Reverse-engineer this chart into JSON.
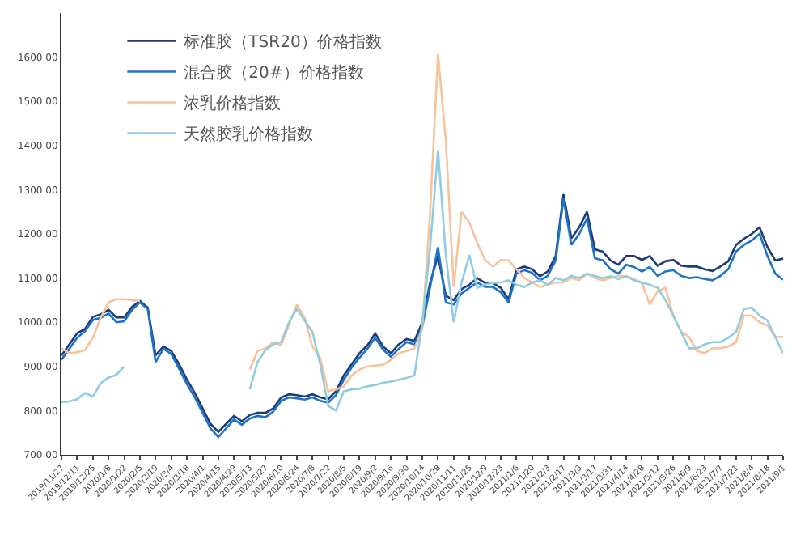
{
  "chart_data": {
    "type": "line",
    "x": [
      "2019-11-27",
      "2019-12-04",
      "2019-12-11",
      "2019-12-18",
      "2019-12-25",
      "2020-01-01",
      "2020-01-08",
      "2020-01-15",
      "2020-01-22",
      "2020-01-29",
      "2020-02-05",
      "2020-02-12",
      "2020-02-19",
      "2020-02-26",
      "2020-03-04",
      "2020-03-11",
      "2020-03-18",
      "2020-03-25",
      "2020-04-01",
      "2020-04-08",
      "2020-04-15",
      "2020-04-22",
      "2020-04-29",
      "2020-05-06",
      "2020-05-13",
      "2020-05-20",
      "2020-05-27",
      "2020-06-03",
      "2020-06-10",
      "2020-06-17",
      "2020-06-24",
      "2020-07-01",
      "2020-07-08",
      "2020-07-15",
      "2020-07-22",
      "2020-07-29",
      "2020-08-05",
      "2020-08-12",
      "2020-08-19",
      "2020-08-26",
      "2020-09-02",
      "2020-09-09",
      "2020-09-16",
      "2020-09-23",
      "2020-09-30",
      "2020-10-07",
      "2020-10-14",
      "2020-10-21",
      "2020-10-28",
      "2020-11-04",
      "2020-11-11",
      "2020-11-18",
      "2020-11-25",
      "2020-12-02",
      "2020-12-09",
      "2020-12-16",
      "2020-12-23",
      "2020-12-30",
      "2021-01-06",
      "2021-01-13",
      "2021-01-20",
      "2021-01-27",
      "2021-02-03",
      "2021-02-10",
      "2021-02-17",
      "2021-02-24",
      "2021-03-03",
      "2021-03-10",
      "2021-03-17",
      "2021-03-24",
      "2021-03-31",
      "2021-04-07",
      "2021-04-14",
      "2021-04-21",
      "2021-04-28",
      "2021-05-05",
      "2021-05-12",
      "2021-05-19",
      "2021-05-26",
      "2021-06-02",
      "2021-06-09",
      "2021-06-16",
      "2021-06-23",
      "2021-06-30",
      "2021-07-07",
      "2021-07-14",
      "2021-07-21",
      "2021-07-28",
      "2021-08-04",
      "2021-08-11",
      "2021-08-18",
      "2021-08-25",
      "2021-09-01"
    ],
    "series": [
      {
        "name": "标准胶（TSR20）价格指数",
        "color": "#1f3a75",
        "values": [
          925,
          950,
          975,
          985,
          1012,
          1018,
          1028,
          1011,
          1011,
          1035,
          1048,
          1033,
          925,
          945,
          935,
          905,
          870,
          840,
          805,
          770,
          752,
          770,
          788,
          776,
          790,
          795,
          795,
          805,
          830,
          837,
          835,
          832,
          837,
          830,
          826,
          844,
          880,
          905,
          930,
          948,
          975,
          945,
          930,
          950,
          962,
          958,
          1000,
          1090,
          1150,
          1060,
          1050,
          1075,
          1085,
          1100,
          1089,
          1089,
          1078,
          1052,
          1120,
          1126,
          1120,
          1104,
          1115,
          1150,
          1290,
          1190,
          1215,
          1250,
          1165,
          1160,
          1140,
          1130,
          1150,
          1150,
          1141,
          1150,
          1128,
          1138,
          1141,
          1128,
          1126,
          1126,
          1120,
          1116,
          1126,
          1138,
          1175,
          1189,
          1200,
          1215,
          1170,
          1140,
          1144
        ]
      },
      {
        "name": "混合胶（20#）价格指数",
        "color": "#1a73c9",
        "values": [
          915,
          940,
          965,
          980,
          1005,
          1010,
          1020,
          1000,
          1002,
          1028,
          1045,
          1030,
          910,
          940,
          928,
          895,
          860,
          830,
          795,
          760,
          740,
          760,
          780,
          768,
          782,
          788,
          785,
          798,
          822,
          830,
          828,
          825,
          830,
          822,
          818,
          835,
          870,
          898,
          920,
          940,
          965,
          938,
          922,
          940,
          955,
          950,
          990,
          1080,
          1170,
          1045,
          1040,
          1065,
          1078,
          1090,
          1080,
          1080,
          1068,
          1045,
          1110,
          1118,
          1112,
          1095,
          1105,
          1140,
          1280,
          1175,
          1200,
          1235,
          1145,
          1140,
          1120,
          1110,
          1130,
          1125,
          1115,
          1125,
          1105,
          1115,
          1118,
          1105,
          1100,
          1102,
          1098,
          1095,
          1105,
          1120,
          1160,
          1175,
          1185,
          1200,
          1150,
          1110,
          1096
        ]
      },
      {
        "name": "浓乳价格指数",
        "color": "#f8c29a",
        "values": [
          941,
          930,
          932,
          937,
          965,
          1010,
          1045,
          1052,
          1052,
          1050,
          1048,
          null,
          null,
          null,
          null,
          null,
          null,
          null,
          null,
          null,
          null,
          null,
          null,
          null,
          893,
          935,
          941,
          955,
          948,
          995,
          1040,
          1011,
          945,
          919,
          844,
          848,
          855,
          880,
          893,
          900,
          902,
          904,
          915,
          930,
          935,
          941,
          985,
          1250,
          1607,
          1411,
          1080,
          1250,
          1226,
          1180,
          1141,
          1126,
          1141,
          1140,
          1120,
          1100,
          1090,
          1080,
          1085,
          1090,
          1090,
          1100,
          1095,
          1110,
          1100,
          1095,
          1100,
          1105,
          1104,
          1098,
          1089,
          1040,
          1070,
          1078,
          1015,
          978,
          967,
          935,
          930,
          941,
          941,
          945,
          955,
          1015,
          1015,
          1000,
          993,
          967,
          967
        ]
      },
      {
        "name": "天然胶乳价格指数",
        "color": "#90cce0",
        "values": [
          819,
          821,
          826,
          840,
          832,
          862,
          875,
          881,
          900,
          null,
          null,
          null,
          null,
          null,
          null,
          null,
          null,
          null,
          null,
          null,
          null,
          null,
          null,
          null,
          848,
          910,
          937,
          950,
          955,
          1000,
          1030,
          1004,
          978,
          904,
          811,
          800,
          844,
          848,
          850,
          855,
          858,
          863,
          866,
          870,
          874,
          880,
          1000,
          1170,
          1390,
          1152,
          1000,
          1089,
          1152,
          1078,
          1085,
          1089,
          1090,
          1095,
          1085,
          1080,
          1090,
          1095,
          1085,
          1100,
          1095,
          1105,
          1100,
          1110,
          1105,
          1100,
          1104,
          1098,
          1104,
          1095,
          1089,
          1085,
          1078,
          1050,
          1015,
          978,
          941,
          941,
          950,
          955,
          955,
          965,
          978,
          1030,
          1033,
          1015,
          1004,
          967,
          930
        ]
      }
    ],
    "xlim": [
      "2019-11-27",
      "2021-09-01"
    ],
    "xticks": [
      {
        "value": "2019-11-27",
        "label": "2019/11/27"
      },
      {
        "value": "2019-12-11",
        "label": "2019/12/11"
      },
      {
        "value": "2019-12-25",
        "label": "2019/12/25"
      },
      {
        "value": "2020-01-08",
        "label": "2020/1/8"
      },
      {
        "value": "2020-01-22",
        "label": "2020/1/22"
      },
      {
        "value": "2020-02-05",
        "label": "2020/2/5"
      },
      {
        "value": "2020-02-19",
        "label": "2020/2/19"
      },
      {
        "value": "2020-03-04",
        "label": "2020/3/4"
      },
      {
        "value": "2020-03-18",
        "label": "2020/3/18"
      },
      {
        "value": "2020-04-01",
        "label": "2020/4/1"
      },
      {
        "value": "2020-04-15",
        "label": "2020/4/15"
      },
      {
        "value": "2020-04-29",
        "label": "2020/4/29"
      },
      {
        "value": "2020-05-13",
        "label": "2020/5/13"
      },
      {
        "value": "2020-05-27",
        "label": "2020/5/27"
      },
      {
        "value": "2020-06-10",
        "label": "2020/6/10"
      },
      {
        "value": "2020-06-24",
        "label": "2020/6/24"
      },
      {
        "value": "2020-07-08",
        "label": "2020/7/8"
      },
      {
        "value": "2020-07-22",
        "label": "2020/7/22"
      },
      {
        "value": "2020-08-05",
        "label": "2020/8/5"
      },
      {
        "value": "2020-08-19",
        "label": "2020/8/19"
      },
      {
        "value": "2020-09-02",
        "label": "2020/9/2"
      },
      {
        "value": "2020-09-16",
        "label": "2020/9/16"
      },
      {
        "value": "2020-09-30",
        "label": "2020/9/30"
      },
      {
        "value": "2020-10-14",
        "label": "2020/10/14"
      },
      {
        "value": "2020-10-28",
        "label": "2020/10/28"
      },
      {
        "value": "2020-11-11",
        "label": "2020/11/11"
      },
      {
        "value": "2020-11-25",
        "label": "2020/11/25"
      },
      {
        "value": "2020-12-09",
        "label": "2020/12/9"
      },
      {
        "value": "2020-12-23",
        "label": "2020/12/23"
      },
      {
        "value": "2021-01-06",
        "label": "2021/1/6"
      },
      {
        "value": "2021-01-20",
        "label": "2021/1/20"
      },
      {
        "value": "2021-02-03",
        "label": "2021/2/3"
      },
      {
        "value": "2021-02-17",
        "label": "2021/2/17"
      },
      {
        "value": "2021-03-03",
        "label": "2021/3/3"
      },
      {
        "value": "2021-03-17",
        "label": "2021/3/17"
      },
      {
        "value": "2021-03-31",
        "label": "2021/3/31"
      },
      {
        "value": "2021-04-14",
        "label": "2021/4/14"
      },
      {
        "value": "2021-04-28",
        "label": "2021/4/28"
      },
      {
        "value": "2021-05-12",
        "label": "2021/5/12"
      },
      {
        "value": "2021-05-26",
        "label": "2021/5/26"
      },
      {
        "value": "2021-06-09",
        "label": "2021/6/9"
      },
      {
        "value": "2021-06-23",
        "label": "2021/6/23"
      },
      {
        "value": "2021-07-07",
        "label": "2021/7/7"
      },
      {
        "value": "2021-07-21",
        "label": "2021/7/21"
      },
      {
        "value": "2021-08-04",
        "label": "2021/8/4"
      },
      {
        "value": "2021-08-18",
        "label": "2021/8/18"
      },
      {
        "value": "2021-09-01",
        "label": "2021/9/1"
      }
    ],
    "ylim": [
      700,
      1700
    ],
    "yticks": [
      {
        "value": 700,
        "label": "700.00"
      },
      {
        "value": 800,
        "label": "800.00"
      },
      {
        "value": 900,
        "label": "900.00"
      },
      {
        "value": 1000,
        "label": "1000.00"
      },
      {
        "value": 1100,
        "label": "1100.00"
      },
      {
        "value": 1200,
        "label": "1200.00"
      },
      {
        "value": 1300,
        "label": "1300.00"
      },
      {
        "value": 1400,
        "label": "1400.00"
      },
      {
        "value": 1500,
        "label": "1500.00"
      },
      {
        "value": 1600,
        "label": "1600.00"
      }
    ],
    "legend": "top left",
    "line_style": "solid",
    "marker": "none"
  }
}
